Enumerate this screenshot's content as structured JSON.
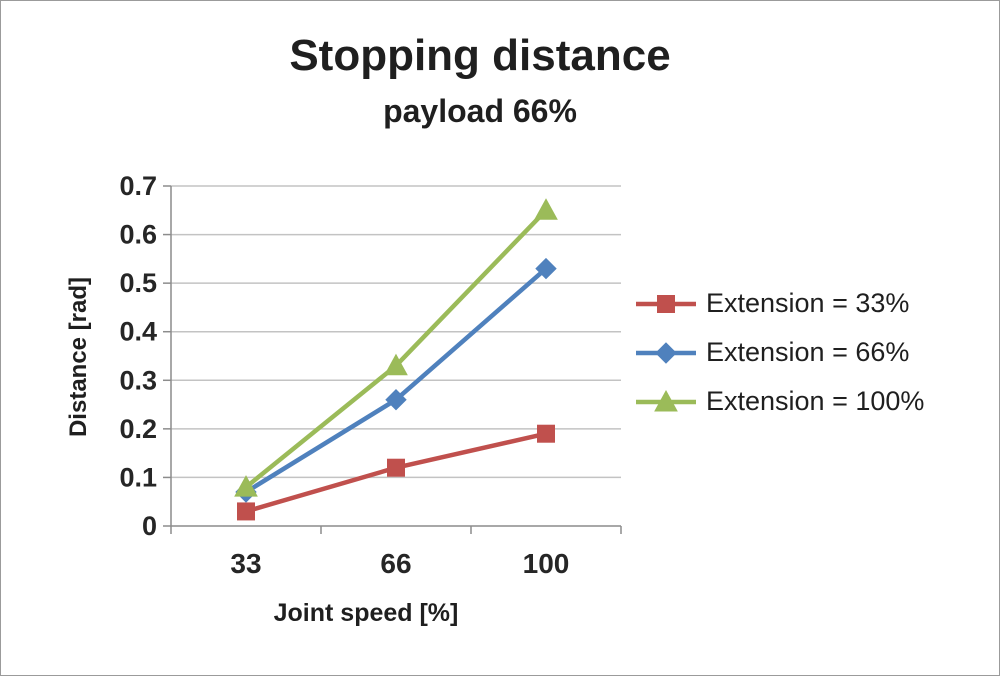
{
  "chart_data": {
    "type": "line",
    "title": "Stopping distance",
    "subtitle": "payload 66%",
    "categories": [
      "33",
      "66",
      "100"
    ],
    "series": [
      {
        "name": "Extension = 33%",
        "values": [
          0.03,
          0.12,
          0.19
        ],
        "color": "#C0504D",
        "marker": "square"
      },
      {
        "name": "Extension = 66%",
        "values": [
          0.07,
          0.26,
          0.53
        ],
        "color": "#4F81BD",
        "marker": "diamond"
      },
      {
        "name": "Extension = 100%",
        "values": [
          0.08,
          0.33,
          0.65
        ],
        "color": "#9BBB59",
        "marker": "triangle"
      }
    ],
    "xlabel": "Joint speed [%]",
    "ylabel": "Distance [rad]",
    "ylim": [
      0,
      0.7
    ],
    "ytick_step": 0.1,
    "grid": true,
    "legend_position": "right",
    "axis_color": "#8c8c8c",
    "grid_color": "#c3c3c3",
    "text_color": "#262626"
  }
}
